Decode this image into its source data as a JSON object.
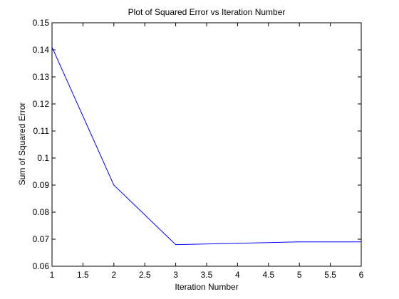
{
  "chart_data": {
    "type": "line",
    "title": "Plot of Squared Error vs Iteration Number",
    "xlabel": "Iteration Number",
    "ylabel": "Sum of Squared Error",
    "xlim": [
      1,
      6
    ],
    "ylim": [
      0.06,
      0.15
    ],
    "xticks": [
      1,
      1.5,
      2,
      2.5,
      3,
      3.5,
      4,
      4.5,
      5,
      5.5,
      6
    ],
    "xtick_labels": [
      "1",
      "1.5",
      "2",
      "2.5",
      "3",
      "3.5",
      "4",
      "4.5",
      "5",
      "5.5",
      "6"
    ],
    "yticks": [
      0.06,
      0.07,
      0.08,
      0.09,
      0.1,
      0.11,
      0.12,
      0.13,
      0.14,
      0.15
    ],
    "ytick_labels": [
      "0.06",
      "0.07",
      "0.08",
      "0.09",
      "0.1",
      "0.11",
      "0.12",
      "0.13",
      "0.14",
      "0.15"
    ],
    "grid": false,
    "legend": "none",
    "series": [
      {
        "color": "#0000ff",
        "x": [
          1,
          2,
          3,
          4,
          5,
          6
        ],
        "y": [
          0.141,
          0.09,
          0.068,
          0.0685,
          0.069,
          0.069
        ]
      }
    ]
  }
}
